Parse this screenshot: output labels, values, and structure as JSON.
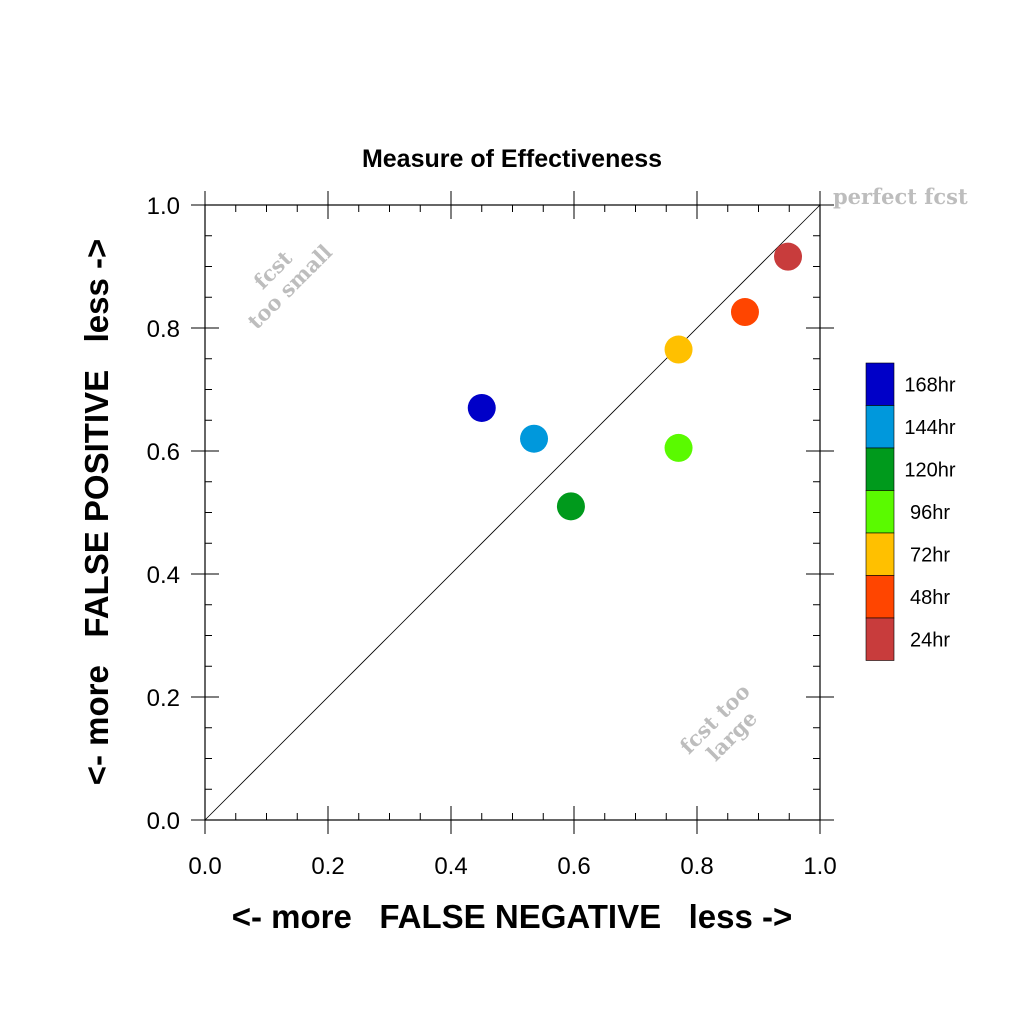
{
  "chart_data": {
    "type": "scatter",
    "title": "Measure of Effectiveness",
    "xlabel": "<- more   FALSE NEGATIVE   less ->",
    "ylabel": "<- more   FALSE POSITIVE   less ->",
    "xlim": [
      0.0,
      1.0
    ],
    "ylim": [
      0.0,
      1.0
    ],
    "xticks": [
      "0.0",
      "0.2",
      "0.4",
      "0.6",
      "0.8",
      "1.0"
    ],
    "yticks": [
      "0.0",
      "0.2",
      "0.4",
      "0.6",
      "0.8",
      "1.0"
    ],
    "grid": false,
    "reference_line": "diagonal y = x",
    "annotations": {
      "perfect": "perfect fcst",
      "small_line1": "fcst",
      "small_line2": "too small",
      "large_line1": "fcst too",
      "large_line2": "large"
    },
    "points": [
      {
        "label": "168hr",
        "x": 0.45,
        "y": 0.67,
        "color": "#0000c8"
      },
      {
        "label": "144hr",
        "x": 0.535,
        "y": 0.62,
        "color": "#0098dc"
      },
      {
        "label": "120hr",
        "x": 0.595,
        "y": 0.51,
        "color": "#009a1c"
      },
      {
        "label": "96hr",
        "x": 0.77,
        "y": 0.605,
        "color": "#5afa00"
      },
      {
        "label": "72hr",
        "x": 0.77,
        "y": 0.765,
        "color": "#ffc000"
      },
      {
        "label": "48hr",
        "x": 0.878,
        "y": 0.826,
        "color": "#ff4500"
      },
      {
        "label": "24hr",
        "x": 0.948,
        "y": 0.916,
        "color": "#c83c3c"
      }
    ],
    "legend_position": "right"
  }
}
